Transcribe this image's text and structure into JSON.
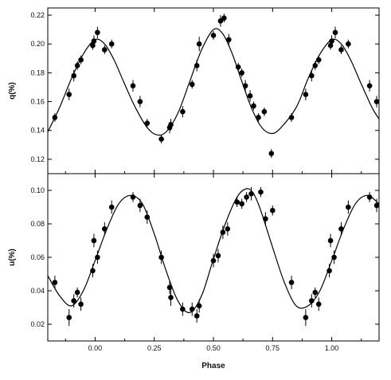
{
  "chart_data": [
    {
      "type": "scatter",
      "panel": "top",
      "ylabel": "q(%)",
      "xlabel": "",
      "xlim": [
        -0.2,
        1.2
      ],
      "ylim": [
        0.11,
        0.225
      ],
      "xticks": [
        "0.00",
        "0.25",
        "0.50",
        "0.75",
        "1.00"
      ],
      "xtick_values": [
        0.0,
        0.25,
        0.5,
        0.75,
        1.0
      ],
      "yticks": [
        "0.12",
        "0.14",
        "0.16",
        "0.18",
        "0.20",
        "0.22"
      ],
      "ytick_values": [
        0.12,
        0.14,
        0.16,
        0.18,
        0.2,
        0.22
      ],
      "grid": false,
      "series": [
        {
          "kind": "observations",
          "points": [
            {
              "x": -0.17,
              "y": 0.149,
              "err": 0.003
            },
            {
              "x": -0.11,
              "y": 0.165,
              "err": 0.004
            },
            {
              "x": -0.09,
              "y": 0.178,
              "err": 0.004
            },
            {
              "x": -0.075,
              "y": 0.185,
              "err": 0.003
            },
            {
              "x": -0.06,
              "y": 0.189,
              "err": 0.003
            },
            {
              "x": -0.01,
              "y": 0.199,
              "err": 0.003
            },
            {
              "x": -0.005,
              "y": 0.202,
              "err": 0.004
            },
            {
              "x": 0.01,
              "y": 0.208,
              "err": 0.004
            },
            {
              "x": 0.04,
              "y": 0.196,
              "err": 0.003
            },
            {
              "x": 0.07,
              "y": 0.2,
              "err": 0.003
            },
            {
              "x": 0.16,
              "y": 0.171,
              "err": 0.004
            },
            {
              "x": 0.19,
              "y": 0.16,
              "err": 0.004
            },
            {
              "x": 0.22,
              "y": 0.145,
              "err": 0.003
            },
            {
              "x": 0.28,
              "y": 0.134,
              "err": 0.003
            },
            {
              "x": 0.315,
              "y": 0.142,
              "err": 0.004
            },
            {
              "x": 0.32,
              "y": 0.144,
              "err": 0.004
            },
            {
              "x": 0.37,
              "y": 0.153,
              "err": 0.004
            },
            {
              "x": 0.41,
              "y": 0.172,
              "err": 0.003
            },
            {
              "x": 0.43,
              "y": 0.185,
              "err": 0.004
            },
            {
              "x": 0.44,
              "y": 0.2,
              "err": 0.005
            },
            {
              "x": 0.5,
              "y": 0.206,
              "err": 0.003
            },
            {
              "x": 0.53,
              "y": 0.216,
              "err": 0.004
            },
            {
              "x": 0.545,
              "y": 0.218,
              "err": 0.003
            },
            {
              "x": 0.565,
              "y": 0.203,
              "err": 0.004
            },
            {
              "x": 0.605,
              "y": 0.184,
              "err": 0.003
            },
            {
              "x": 0.62,
              "y": 0.18,
              "err": 0.003
            },
            {
              "x": 0.635,
              "y": 0.171,
              "err": 0.004
            },
            {
              "x": 0.655,
              "y": 0.164,
              "err": 0.004
            },
            {
              "x": 0.67,
              "y": 0.157,
              "err": 0.003
            },
            {
              "x": 0.69,
              "y": 0.149,
              "err": 0.003
            },
            {
              "x": 0.715,
              "y": 0.153,
              "err": 0.003
            },
            {
              "x": 0.745,
              "y": 0.124,
              "err": 0.003
            },
            {
              "x": 0.83,
              "y": 0.149,
              "err": 0.003
            },
            {
              "x": 0.89,
              "y": 0.165,
              "err": 0.004
            },
            {
              "x": 0.915,
              "y": 0.178,
              "err": 0.004
            },
            {
              "x": 0.93,
              "y": 0.185,
              "err": 0.003
            },
            {
              "x": 0.945,
              "y": 0.189,
              "err": 0.003
            },
            {
              "x": 0.995,
              "y": 0.199,
              "err": 0.003
            },
            {
              "x": 1.0,
              "y": 0.202,
              "err": 0.004
            },
            {
              "x": 1.015,
              "y": 0.208,
              "err": 0.004
            },
            {
              "x": 1.04,
              "y": 0.196,
              "err": 0.003
            },
            {
              "x": 1.07,
              "y": 0.2,
              "err": 0.003
            },
            {
              "x": 1.16,
              "y": 0.171,
              "err": 0.004
            },
            {
              "x": 1.19,
              "y": 0.16,
              "err": 0.004
            }
          ]
        },
        {
          "kind": "model",
          "line_points": [
            [
              -0.2,
              0.139
            ],
            [
              -0.15,
              0.156
            ],
            [
              -0.1,
              0.176
            ],
            [
              -0.05,
              0.193
            ],
            [
              0.0,
              0.203
            ],
            [
              0.04,
              0.2
            ],
            [
              0.08,
              0.189
            ],
            [
              0.12,
              0.174
            ],
            [
              0.17,
              0.156
            ],
            [
              0.22,
              0.142
            ],
            [
              0.26,
              0.137
            ],
            [
              0.3,
              0.139
            ],
            [
              0.35,
              0.152
            ],
            [
              0.4,
              0.174
            ],
            [
              0.45,
              0.196
            ],
            [
              0.5,
              0.21
            ],
            [
              0.54,
              0.207
            ],
            [
              0.58,
              0.193
            ],
            [
              0.62,
              0.174
            ],
            [
              0.66,
              0.156
            ],
            [
              0.7,
              0.143
            ],
            [
              0.74,
              0.138
            ],
            [
              0.78,
              0.141
            ],
            [
              0.85,
              0.156
            ],
            [
              0.9,
              0.176
            ],
            [
              0.95,
              0.193
            ],
            [
              1.0,
              0.203
            ],
            [
              1.04,
              0.2
            ],
            [
              1.08,
              0.189
            ],
            [
              1.12,
              0.174
            ],
            [
              1.17,
              0.156
            ],
            [
              1.2,
              0.148
            ]
          ]
        }
      ]
    },
    {
      "type": "scatter",
      "panel": "bottom",
      "ylabel": "u(%)",
      "xlabel": "Phase",
      "xlim": [
        -0.2,
        1.2
      ],
      "ylim": [
        0.01,
        0.11
      ],
      "xticks": [
        "0.00",
        "0.25",
        "0.50",
        "0.75",
        "1.00"
      ],
      "xtick_values": [
        0.0,
        0.25,
        0.5,
        0.75,
        1.0
      ],
      "yticks": [
        "0.02",
        "0.04",
        "0.06",
        "0.08",
        "0.10"
      ],
      "ytick_values": [
        0.02,
        0.04,
        0.06,
        0.08,
        0.1
      ],
      "grid": false,
      "series": [
        {
          "kind": "observations",
          "points": [
            {
              "x": -0.17,
              "y": 0.045,
              "err": 0.004
            },
            {
              "x": -0.11,
              "y": 0.024,
              "err": 0.005
            },
            {
              "x": -0.09,
              "y": 0.034,
              "err": 0.004
            },
            {
              "x": -0.075,
              "y": 0.039,
              "err": 0.003
            },
            {
              "x": -0.06,
              "y": 0.032,
              "err": 0.004
            },
            {
              "x": -0.01,
              "y": 0.052,
              "err": 0.004
            },
            {
              "x": -0.005,
              "y": 0.07,
              "err": 0.004
            },
            {
              "x": 0.01,
              "y": 0.06,
              "err": 0.004
            },
            {
              "x": 0.04,
              "y": 0.077,
              "err": 0.004
            },
            {
              "x": 0.07,
              "y": 0.09,
              "err": 0.004
            },
            {
              "x": 0.16,
              "y": 0.096,
              "err": 0.003
            },
            {
              "x": 0.19,
              "y": 0.091,
              "err": 0.004
            },
            {
              "x": 0.22,
              "y": 0.084,
              "err": 0.004
            },
            {
              "x": 0.28,
              "y": 0.06,
              "err": 0.004
            },
            {
              "x": 0.315,
              "y": 0.042,
              "err": 0.004
            },
            {
              "x": 0.32,
              "y": 0.036,
              "err": 0.005
            },
            {
              "x": 0.37,
              "y": 0.029,
              "err": 0.004
            },
            {
              "x": 0.41,
              "y": 0.029,
              "err": 0.004
            },
            {
              "x": 0.43,
              "y": 0.025,
              "err": 0.004
            },
            {
              "x": 0.44,
              "y": 0.031,
              "err": 0.004
            },
            {
              "x": 0.5,
              "y": 0.058,
              "err": 0.004
            },
            {
              "x": 0.52,
              "y": 0.061,
              "err": 0.004
            },
            {
              "x": 0.54,
              "y": 0.075,
              "err": 0.004
            },
            {
              "x": 0.56,
              "y": 0.077,
              "err": 0.004
            },
            {
              "x": 0.6,
              "y": 0.093,
              "err": 0.003
            },
            {
              "x": 0.62,
              "y": 0.092,
              "err": 0.003
            },
            {
              "x": 0.64,
              "y": 0.096,
              "err": 0.003
            },
            {
              "x": 0.66,
              "y": 0.098,
              "err": 0.004
            },
            {
              "x": 0.7,
              "y": 0.099,
              "err": 0.003
            },
            {
              "x": 0.72,
              "y": 0.083,
              "err": 0.004
            },
            {
              "x": 0.75,
              "y": 0.088,
              "err": 0.003
            },
            {
              "x": 0.83,
              "y": 0.045,
              "err": 0.004
            },
            {
              "x": 0.89,
              "y": 0.024,
              "err": 0.005
            },
            {
              "x": 0.915,
              "y": 0.034,
              "err": 0.004
            },
            {
              "x": 0.93,
              "y": 0.039,
              "err": 0.003
            },
            {
              "x": 0.945,
              "y": 0.032,
              "err": 0.004
            },
            {
              "x": 0.99,
              "y": 0.052,
              "err": 0.004
            },
            {
              "x": 0.995,
              "y": 0.07,
              "err": 0.004
            },
            {
              "x": 1.01,
              "y": 0.06,
              "err": 0.004
            },
            {
              "x": 1.04,
              "y": 0.077,
              "err": 0.004
            },
            {
              "x": 1.07,
              "y": 0.09,
              "err": 0.004
            },
            {
              "x": 1.16,
              "y": 0.096,
              "err": 0.003
            },
            {
              "x": 1.19,
              "y": 0.091,
              "err": 0.004
            }
          ]
        },
        {
          "kind": "model",
          "line_points": [
            [
              -0.2,
              0.049
            ],
            [
              -0.15,
              0.037
            ],
            [
              -0.1,
              0.031
            ],
            [
              -0.05,
              0.04
            ],
            [
              0.0,
              0.058
            ],
            [
              0.05,
              0.077
            ],
            [
              0.1,
              0.092
            ],
            [
              0.15,
              0.097
            ],
            [
              0.2,
              0.092
            ],
            [
              0.25,
              0.074
            ],
            [
              0.3,
              0.052
            ],
            [
              0.35,
              0.034
            ],
            [
              0.4,
              0.027
            ],
            [
              0.45,
              0.037
            ],
            [
              0.5,
              0.059
            ],
            [
              0.55,
              0.08
            ],
            [
              0.6,
              0.096
            ],
            [
              0.64,
              0.101
            ],
            [
              0.67,
              0.098
            ],
            [
              0.7,
              0.088
            ],
            [
              0.75,
              0.066
            ],
            [
              0.8,
              0.045
            ],
            [
              0.85,
              0.031
            ],
            [
              0.9,
              0.031
            ],
            [
              0.95,
              0.04
            ],
            [
              1.0,
              0.058
            ],
            [
              1.05,
              0.077
            ],
            [
              1.1,
              0.092
            ],
            [
              1.15,
              0.097
            ],
            [
              1.2,
              0.092
            ]
          ]
        }
      ]
    }
  ]
}
